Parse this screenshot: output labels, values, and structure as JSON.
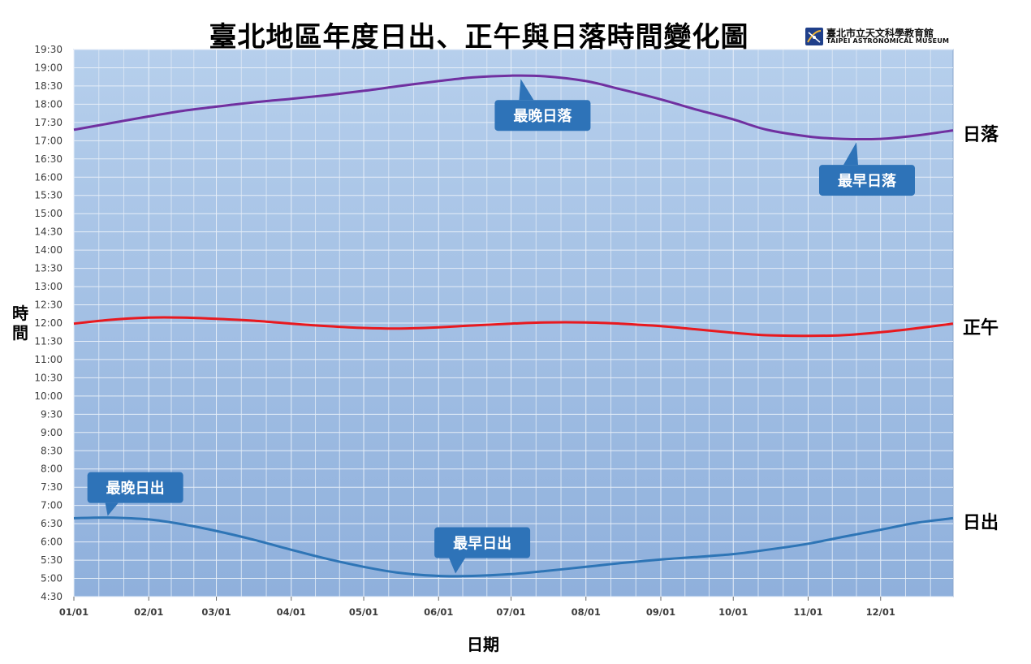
{
  "header": {
    "title": "臺北地區年度日出、正午與日落時間變化圖",
    "logo_name": "臺北市立天文科學教育館",
    "logo_sub": "TAIPEI ASTRONOMICAL MUSEUM"
  },
  "chart_data": {
    "type": "line",
    "title": "臺北地區年度日出、正午與日落時間變化圖",
    "xlabel": "日期",
    "ylabel": "時間",
    "x_unit": "day of year",
    "x_ticks": [
      {
        "label": "01/01",
        "day": 1
      },
      {
        "label": "02/01",
        "day": 32
      },
      {
        "label": "03/01",
        "day": 60
      },
      {
        "label": "04/01",
        "day": 91
      },
      {
        "label": "05/01",
        "day": 121
      },
      {
        "label": "06/01",
        "day": 152
      },
      {
        "label": "07/01",
        "day": 182
      },
      {
        "label": "08/01",
        "day": 213
      },
      {
        "label": "09/01",
        "day": 244
      },
      {
        "label": "10/01",
        "day": 274
      },
      {
        "label": "11/01",
        "day": 305
      },
      {
        "label": "12/01",
        "day": 335
      }
    ],
    "xlim": [
      1,
      365
    ],
    "y_ticks": [
      "4:30",
      "5:00",
      "5:30",
      "6:00",
      "6:30",
      "7:00",
      "7:30",
      "8:00",
      "8:30",
      "9:00",
      "9:30",
      "10:00",
      "10:30",
      "11:00",
      "11:30",
      "12:00",
      "12:30",
      "13:00",
      "13:30",
      "14:00",
      "14:30",
      "15:00",
      "15:30",
      "16:00",
      "16:30",
      "17:00",
      "17:30",
      "18:00",
      "18:30",
      "19:00",
      "19:30"
    ],
    "ylim": [
      "4:30",
      "19:30"
    ],
    "grid": true,
    "series": [
      {
        "name": "日落",
        "color": "#7030a0",
        "points": [
          [
            1,
            "17:18"
          ],
          [
            15,
            "17:28"
          ],
          [
            32,
            "17:40"
          ],
          [
            46,
            "17:49"
          ],
          [
            60,
            "17:56"
          ],
          [
            75,
            "18:03"
          ],
          [
            91,
            "18:09"
          ],
          [
            106,
            "18:15"
          ],
          [
            121,
            "18:22"
          ],
          [
            136,
            "18:30"
          ],
          [
            152,
            "18:38"
          ],
          [
            166,
            "18:44"
          ],
          [
            182,
            "18:47"
          ],
          [
            196,
            "18:46"
          ],
          [
            213,
            "18:38"
          ],
          [
            227,
            "18:25"
          ],
          [
            244,
            "18:08"
          ],
          [
            258,
            "17:52"
          ],
          [
            274,
            "17:35"
          ],
          [
            288,
            "17:18"
          ],
          [
            305,
            "17:07"
          ],
          [
            319,
            "17:03"
          ],
          [
            335,
            "17:03"
          ],
          [
            349,
            "17:08"
          ],
          [
            365,
            "17:17"
          ]
        ]
      },
      {
        "name": "正午",
        "color": "#e8191f",
        "points": [
          [
            1,
            "11:59"
          ],
          [
            15,
            "12:05"
          ],
          [
            32,
            "12:09"
          ],
          [
            46,
            "12:09"
          ],
          [
            60,
            "12:07"
          ],
          [
            75,
            "12:04"
          ],
          [
            91,
            "11:59"
          ],
          [
            106,
            "11:55"
          ],
          [
            121,
            "11:52"
          ],
          [
            136,
            "11:51"
          ],
          [
            152,
            "11:53"
          ],
          [
            166,
            "11:56"
          ],
          [
            182,
            "11:59"
          ],
          [
            196,
            "12:01"
          ],
          [
            213,
            "12:01"
          ],
          [
            227,
            "11:59"
          ],
          [
            244,
            "11:55"
          ],
          [
            258,
            "11:50"
          ],
          [
            274,
            "11:44"
          ],
          [
            288,
            "11:40"
          ],
          [
            305,
            "11:39"
          ],
          [
            319,
            "11:40"
          ],
          [
            335,
            "11:45"
          ],
          [
            349,
            "11:51"
          ],
          [
            365,
            "11:59"
          ]
        ]
      },
      {
        "name": "日出",
        "color": "#2e75b6",
        "points": [
          [
            1,
            "6:39"
          ],
          [
            15,
            "6:40"
          ],
          [
            32,
            "6:37"
          ],
          [
            46,
            "6:29"
          ],
          [
            60,
            "6:18"
          ],
          [
            75,
            "6:04"
          ],
          [
            91,
            "5:47"
          ],
          [
            106,
            "5:32"
          ],
          [
            121,
            "5:19"
          ],
          [
            136,
            "5:09"
          ],
          [
            152,
            "5:04"
          ],
          [
            166,
            "5:04"
          ],
          [
            182,
            "5:07"
          ],
          [
            196,
            "5:12"
          ],
          [
            213,
            "5:19"
          ],
          [
            227,
            "5:25"
          ],
          [
            244,
            "5:31"
          ],
          [
            258,
            "5:35"
          ],
          [
            274,
            "5:40"
          ],
          [
            288,
            "5:47"
          ],
          [
            305,
            "5:57"
          ],
          [
            319,
            "6:08"
          ],
          [
            335,
            "6:20"
          ],
          [
            349,
            "6:31"
          ],
          [
            365,
            "6:39"
          ]
        ]
      }
    ],
    "series_labels": [
      "日落",
      "正午",
      "日出"
    ],
    "annotations": [
      {
        "text": "最晚日落",
        "day": 186,
        "time": "18:47"
      },
      {
        "text": "最早日落",
        "day": 325,
        "time": "17:03"
      },
      {
        "text": "最晚日出",
        "day": 15,
        "time": "6:40"
      },
      {
        "text": "最早日出",
        "day": 159,
        "time": "5:04"
      }
    ]
  }
}
